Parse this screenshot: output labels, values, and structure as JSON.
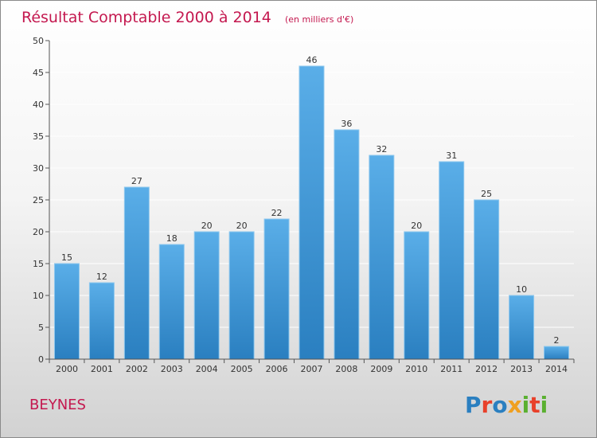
{
  "chart_data": {
    "type": "bar",
    "title": "Résultat Comptable 2000 à 2014",
    "subtitle": "(en milliers d'€)",
    "xlabel": "",
    "ylabel": "",
    "ylim": [
      0,
      50
    ],
    "yticks": [
      0,
      5,
      10,
      15,
      20,
      25,
      30,
      35,
      40,
      45,
      50
    ],
    "grid": true,
    "categories": [
      "2000",
      "2001",
      "2002",
      "2003",
      "2004",
      "2005",
      "2006",
      "2007",
      "2008",
      "2009",
      "2010",
      "2011",
      "2012",
      "2013",
      "2014"
    ],
    "values": [
      15,
      12,
      27,
      18,
      20,
      20,
      22,
      46,
      36,
      32,
      20,
      31,
      25,
      10,
      2
    ]
  },
  "location": {
    "name": "BEYNES"
  },
  "logo": {
    "text": "Proxiti"
  },
  "colors": {
    "title": "#c4184f",
    "bar_top": "#5aaee8",
    "bar_bottom": "#2a7fc0"
  }
}
